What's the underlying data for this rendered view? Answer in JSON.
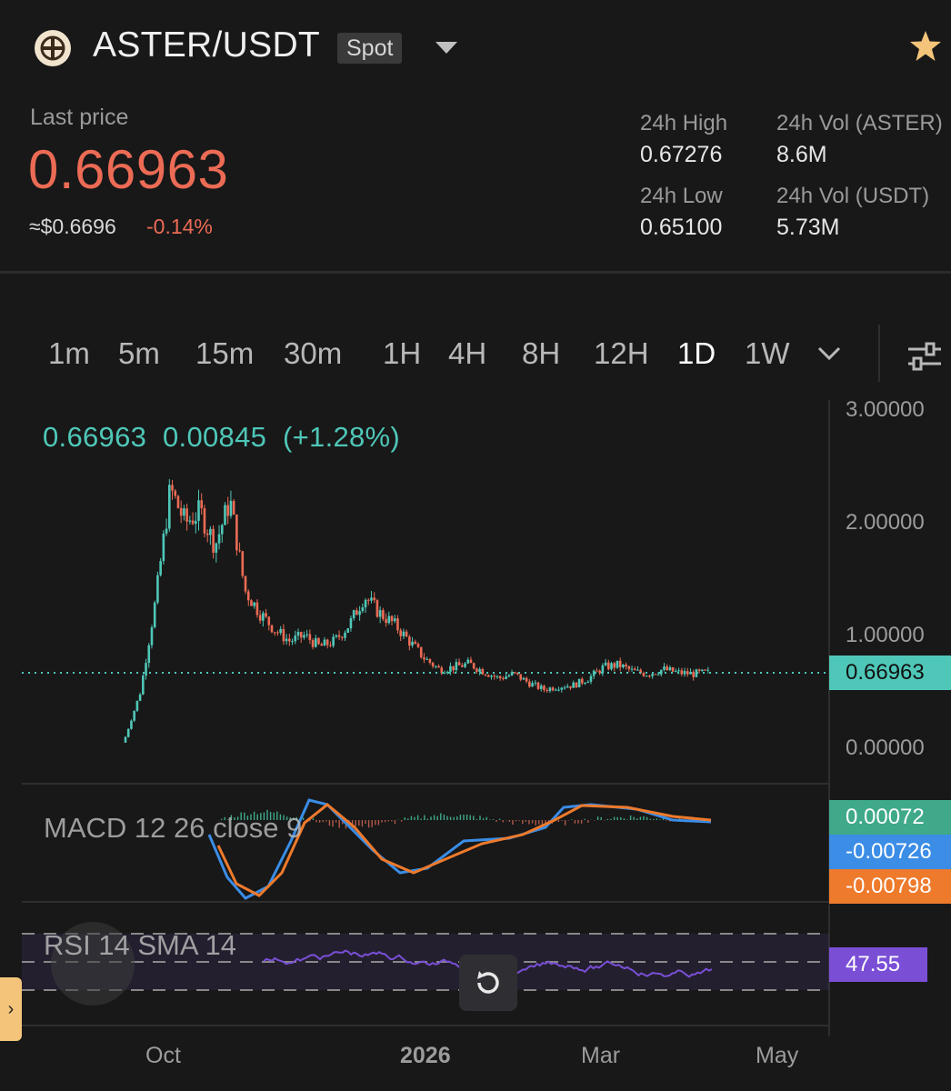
{
  "header": {
    "pair": "ASTER/USDT",
    "market_type": "Spot",
    "logo_icon": "aster-logo-icon",
    "dropdown_icon": "chevron-down-icon",
    "favorite_icon": "star-icon"
  },
  "ticker": {
    "last_price_label": "Last price",
    "last_price": "0.66963",
    "usd_price": "≈$0.6696",
    "change_pct": "-0.14%",
    "high_label": "24h High",
    "high": "0.67276",
    "low_label": "24h Low",
    "low": "0.65100",
    "vol_base_label": "24h Vol (ASTER)",
    "vol_base": "8.6M",
    "vol_quote_label": "24h Vol (USDT)",
    "vol_quote": "5.73M"
  },
  "timeframes": [
    "1m",
    "5m",
    "15m",
    "30m",
    "1H",
    "4H",
    "8H",
    "12H",
    "1D",
    "1W"
  ],
  "active_timeframe": "1D",
  "chart": {
    "ohlc_price": "0.66963",
    "ohlc_change": "0.00845",
    "ohlc_change_pct": "(+1.28%)",
    "y_ticks": [
      "3.00000",
      "2.00000",
      "1.00000",
      "0.00000"
    ],
    "last_price_tag": "0.66963",
    "x_ticks": [
      "Oct",
      "2026",
      "Mar",
      "May"
    ],
    "macd_label": "MACD 12 26 close 9",
    "macd_hist": "0.00072",
    "macd_line": "-0.00726",
    "macd_signal": "-0.00798",
    "rsi_label": "RSI 14 SMA 14",
    "rsi_value": "47.55"
  },
  "colors": {
    "up": "#4fc7b8",
    "down": "#ec6b55",
    "macd_line": "#3b8de6",
    "macd_signal": "#ee7a2c",
    "rsi": "#7a4fd6"
  },
  "chart_data": {
    "type": "candlestick",
    "series": [
      {
        "name": "price",
        "close_approx": [
          0.1,
          0.5,
          1.3,
          2.3,
          2.0,
          2.1,
          1.8,
          2.2,
          1.4,
          1.2,
          1.05,
          0.95,
          1.0,
          0.9,
          0.95,
          1.1,
          1.35,
          1.2,
          1.1,
          0.95,
          0.8,
          0.7,
          0.72,
          0.75,
          0.68,
          0.62,
          0.66,
          0.58,
          0.52,
          0.55,
          0.56,
          0.62,
          0.72,
          0.74,
          0.68,
          0.66,
          0.7,
          0.67,
          0.66,
          0.67
        ]
      },
      {
        "name": "RSI",
        "value": 47.55
      }
    ],
    "ylim": [
      0,
      3
    ]
  }
}
